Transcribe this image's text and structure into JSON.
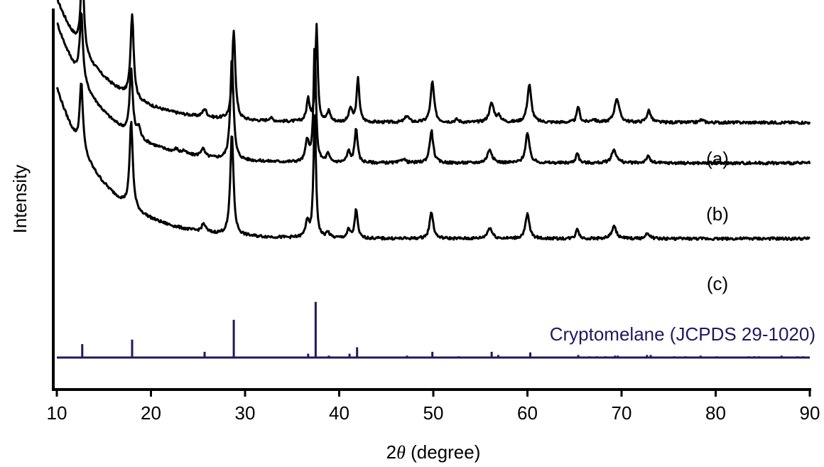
{
  "chart_data": {
    "type": "line",
    "xlabel_prefix": "2",
    "xlabel_symbol": "θ",
    "xlabel_suffix": " (degree)",
    "ylabel": "Intensity",
    "xlim": [
      10,
      90
    ],
    "x_ticks": [
      "10",
      "20",
      "30",
      "40",
      "50",
      "60",
      "70",
      "80",
      "90"
    ],
    "grid": false,
    "colors": {
      "series": "#000000",
      "reference": "#1f1a5e"
    },
    "series": [
      {
        "name": "(a)",
        "offset": 4.0,
        "background": {
          "b": 0.9,
          "a": 2.3,
          "tau": 5.0,
          "shift": -0.55
        },
        "peaks": [
          [
            12.7,
            1.55,
            0.4
          ],
          [
            18.0,
            1.55,
            0.4
          ],
          [
            25.7,
            0.15,
            0.5
          ],
          [
            28.8,
            1.65,
            0.4
          ],
          [
            32.7,
            0.06,
            0.5
          ],
          [
            36.7,
            0.4,
            0.4
          ],
          [
            37.6,
            1.8,
            0.3
          ],
          [
            38.9,
            0.2,
            0.4
          ],
          [
            41.2,
            0.25,
            0.4
          ],
          [
            42.0,
            0.8,
            0.35
          ],
          [
            47.2,
            0.12,
            0.5
          ],
          [
            49.9,
            0.75,
            0.45
          ],
          [
            52.5,
            0.05,
            0.5
          ],
          [
            56.2,
            0.35,
            0.6
          ],
          [
            57.0,
            0.1,
            0.5
          ],
          [
            60.2,
            0.7,
            0.5
          ],
          [
            65.4,
            0.3,
            0.35
          ],
          [
            67.0,
            0.06,
            0.5
          ],
          [
            69.5,
            0.45,
            0.6
          ],
          [
            72.9,
            0.22,
            0.5
          ],
          [
            78.5,
            0.05,
            0.5
          ]
        ]
      },
      {
        "name": "(b)",
        "offset": 2.9,
        "background": {
          "b": 0.9,
          "a": 2.6,
          "tau": 5.0,
          "shift": -0.2
        },
        "peaks": [
          [
            12.6,
            1.25,
            0.4
          ],
          [
            17.9,
            1.2,
            0.4
          ],
          [
            18.7,
            0.2,
            0.4
          ],
          [
            22.7,
            0.06,
            0.4
          ],
          [
            23.5,
            0.06,
            0.4
          ],
          [
            25.5,
            0.15,
            0.5
          ],
          [
            28.6,
            1.9,
            0.4
          ],
          [
            36.6,
            0.4,
            0.4
          ],
          [
            37.4,
            2.2,
            0.3
          ],
          [
            38.8,
            0.15,
            0.4
          ],
          [
            41.0,
            0.2,
            0.4
          ],
          [
            41.8,
            0.65,
            0.35
          ],
          [
            46.8,
            0.08,
            0.5
          ],
          [
            49.8,
            0.6,
            0.45
          ],
          [
            56.0,
            0.25,
            0.6
          ],
          [
            60.0,
            0.55,
            0.5
          ],
          [
            65.3,
            0.2,
            0.35
          ],
          [
            69.2,
            0.25,
            0.6
          ],
          [
            72.8,
            0.12,
            0.5
          ]
        ]
      },
      {
        "name": "(c)",
        "offset": 1.5,
        "background": {
          "b": 0.9,
          "a": 2.8,
          "tau": 5.0,
          "shift": -0.2
        },
        "peaks": [
          [
            12.6,
            1.25,
            0.4
          ],
          [
            17.9,
            1.6,
            0.4
          ],
          [
            25.6,
            0.15,
            0.5
          ],
          [
            28.6,
            1.9,
            0.4
          ],
          [
            36.6,
            0.3,
            0.4
          ],
          [
            37.4,
            2.4,
            0.3
          ],
          [
            38.8,
            0.1,
            0.4
          ],
          [
            41.0,
            0.15,
            0.4
          ],
          [
            41.8,
            0.55,
            0.35
          ],
          [
            49.8,
            0.5,
            0.45
          ],
          [
            56.0,
            0.2,
            0.6
          ],
          [
            60.0,
            0.45,
            0.5
          ],
          [
            65.3,
            0.2,
            0.35
          ],
          [
            69.2,
            0.22,
            0.6
          ],
          [
            72.8,
            0.1,
            0.5
          ]
        ]
      }
    ],
    "reference": {
      "name": "Cryptomelane (JCPDS 29-1020)",
      "lines": [
        [
          12.7,
          21
        ],
        [
          18.0,
          28
        ],
        [
          25.7,
          9
        ],
        [
          28.8,
          59
        ],
        [
          36.7,
          6
        ],
        [
          37.5,
          87
        ],
        [
          38.9,
          3
        ],
        [
          41.1,
          6
        ],
        [
          41.9,
          16
        ],
        [
          47.2,
          3
        ],
        [
          49.9,
          9
        ],
        [
          52.7,
          2
        ],
        [
          56.2,
          9
        ],
        [
          56.9,
          4
        ],
        [
          60.3,
          8
        ],
        [
          65.4,
          4
        ],
        [
          66.6,
          2
        ],
        [
          67.4,
          2
        ],
        [
          68.3,
          2
        ],
        [
          69.3,
          3
        ],
        [
          69.6,
          3
        ],
        [
          72.7,
          4
        ],
        [
          73.1,
          4
        ],
        [
          75.6,
          2
        ],
        [
          76.8,
          2
        ],
        [
          78.4,
          3
        ],
        [
          80.1,
          2
        ],
        [
          83.5,
          2
        ],
        [
          84.1,
          2
        ],
        [
          84.6,
          2
        ],
        [
          87.0,
          3
        ],
        [
          88.7,
          2
        ],
        [
          89.3,
          2
        ]
      ]
    }
  }
}
